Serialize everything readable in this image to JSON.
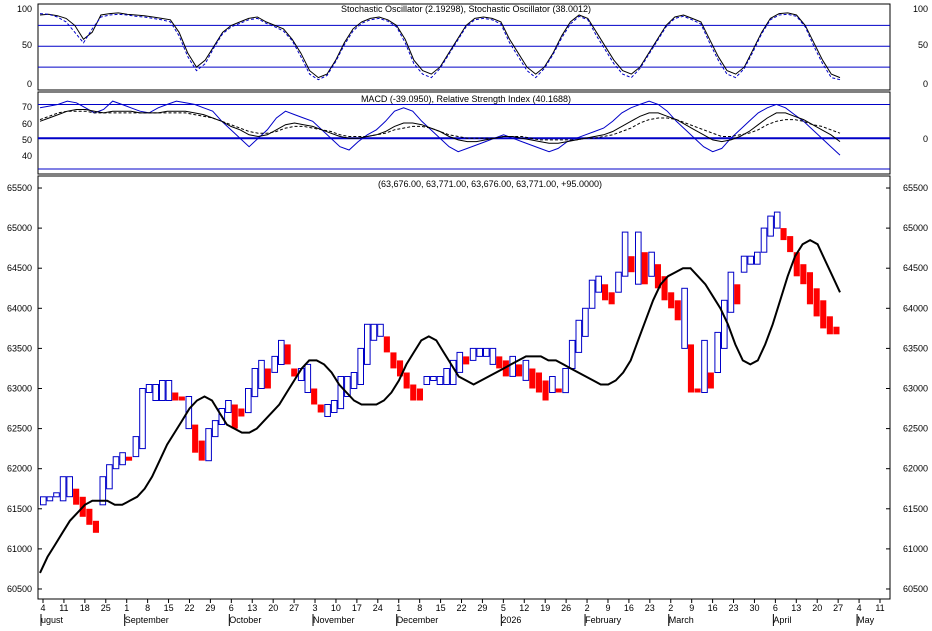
{
  "colors": {
    "background": "#ffffff",
    "frame": "#000000",
    "reference_line": "#0000c8",
    "up_bar": "#0000c8",
    "down_bar": "#ff0000",
    "indicator_line": "#000000",
    "indicator_blue": "#0000c8"
  },
  "stochastic_panel": {
    "title": "Stochastic Oscillator (2.19298), Stochastic Oscillator (38.0012)",
    "y_ticks": [
      "100",
      "50",
      "0"
    ],
    "right_ticks": [
      "100",
      "50",
      "0"
    ]
  },
  "macd_rsi_panel": {
    "title": "MACD (-39.0950), Relative Strength Index (40.1688)",
    "y_ticks": [
      "70",
      "60",
      "50",
      "40"
    ],
    "right_ticks": [
      "0"
    ]
  },
  "price_panel": {
    "title": "(63,676.00, 63,771.00, 63,676.00, 63,771.00, +95.0000)",
    "y_ticks": [
      "65500",
      "65000",
      "64500",
      "64000",
      "63500",
      "63000",
      "62500",
      "62000",
      "61500",
      "61000",
      "60500"
    ]
  },
  "x_axis": {
    "day_labels": [
      "4",
      "11",
      "18",
      "25",
      "1",
      "8",
      "15",
      "22",
      "29",
      "6",
      "13",
      "20",
      "27",
      "3",
      "10",
      "17",
      "24",
      "1",
      "8",
      "15",
      "22",
      "29",
      "5",
      "12",
      "19",
      "26",
      "2",
      "9",
      "16",
      "23",
      "2",
      "9",
      "16",
      "23",
      "30",
      "6",
      "13",
      "20",
      "27",
      "4",
      "11"
    ],
    "month_labels": [
      "ugust",
      "September",
      "October",
      "November",
      "December",
      "2026",
      "February",
      "March",
      "April",
      "May"
    ]
  },
  "chart_data": [
    {
      "type": "line",
      "name": "stochastic",
      "title": "Stochastic Oscillator (2.19298), Stochastic Oscillator (38.0012)",
      "ylim": [
        -10,
        105
      ],
      "reference_levels": [
        80,
        50,
        20
      ],
      "series": [
        {
          "values": [
            95,
            96,
            94,
            90,
            80,
            60,
            70,
            95,
            97,
            98,
            96,
            95,
            94,
            92,
            90,
            88,
            70,
            40,
            20,
            30,
            50,
            70,
            80,
            85,
            90,
            92,
            85,
            80,
            75,
            60,
            40,
            15,
            5,
            10,
            30,
            55,
            75,
            85,
            90,
            92,
            88,
            80,
            60,
            30,
            15,
            10,
            20,
            40,
            60,
            80,
            90,
            92,
            90,
            85,
            60,
            40,
            20,
            10,
            20,
            40,
            65,
            85,
            95,
            90,
            70,
            50,
            30,
            15,
            10,
            20,
            40,
            60,
            80,
            92,
            95,
            90,
            85,
            60,
            35,
            15,
            10,
            20,
            45,
            70,
            90,
            97,
            98,
            95,
            80,
            55,
            30,
            10,
            5
          ]
        },
        {
          "values": [
            97,
            96,
            92,
            85,
            70,
            55,
            75,
            92,
            95,
            96,
            95,
            93,
            92,
            90,
            88,
            85,
            65,
            35,
            15,
            25,
            48,
            68,
            78,
            83,
            88,
            90,
            83,
            78,
            72,
            58,
            35,
            10,
            2,
            8,
            28,
            52,
            72,
            83,
            88,
            90,
            86,
            78,
            55,
            25,
            10,
            5,
            18,
            38,
            58,
            78,
            88,
            90,
            88,
            82,
            55,
            35,
            15,
            5,
            18,
            38,
            62,
            82,
            93,
            88,
            65,
            45,
            25,
            10,
            5,
            18,
            38,
            58,
            78,
            90,
            93,
            88,
            82,
            55,
            30,
            10,
            5,
            18,
            42,
            68,
            88,
            95,
            96,
            93,
            78,
            50,
            25,
            5,
            2
          ]
        }
      ]
    },
    {
      "type": "line",
      "name": "macd-rsi",
      "title": "MACD (-39.0950), Relative Strength Index (40.1688)",
      "ylim": [
        30,
        75
      ],
      "reference_levels": [
        70,
        50
      ],
      "series": [
        {
          "values": [
            68,
            69,
            70,
            72,
            71,
            68,
            65,
            67,
            72,
            70,
            68,
            66,
            65,
            68,
            70,
            72,
            71,
            70,
            68,
            66,
            60,
            55,
            50,
            45,
            50,
            55,
            62,
            66,
            64,
            62,
            60,
            55,
            50,
            45,
            43,
            48,
            52,
            55,
            60,
            66,
            68,
            66,
            60,
            55,
            50,
            45,
            42,
            44,
            46,
            48,
            50,
            52,
            50,
            48,
            46,
            44,
            42,
            44,
            48,
            50,
            52,
            54,
            56,
            60,
            65,
            68,
            70,
            72,
            70,
            66,
            60,
            55,
            50,
            45,
            42,
            44,
            50,
            55,
            60,
            65,
            68,
            70,
            68,
            64,
            60,
            55,
            50,
            45,
            40
          ]
        },
        {
          "values": [
            60,
            62,
            64,
            66,
            67,
            67,
            66,
            65,
            66,
            66,
            66,
            65,
            65,
            65,
            66,
            66,
            66,
            65,
            64,
            62,
            60,
            57,
            55,
            52,
            51,
            52,
            55,
            58,
            59,
            58,
            57,
            55,
            53,
            51,
            50,
            50,
            51,
            52,
            54,
            57,
            59,
            59,
            58,
            56,
            54,
            51,
            49,
            48,
            48,
            49,
            50,
            51,
            51,
            50,
            49,
            48,
            47,
            47,
            48,
            49,
            50,
            51,
            52,
            54,
            57,
            60,
            63,
            65,
            65,
            63,
            61,
            58,
            55,
            52,
            49,
            48,
            49,
            51,
            54,
            58,
            62,
            65,
            65,
            63,
            61,
            58,
            55,
            52,
            48
          ]
        },
        {
          "values": [
            61,
            63,
            65,
            66,
            66,
            66,
            65,
            65,
            65,
            65,
            65,
            65,
            65,
            65,
            65,
            65,
            65,
            64,
            63,
            62,
            60,
            58,
            56,
            54,
            53,
            53,
            54,
            56,
            57,
            57,
            56,
            55,
            54,
            52,
            51,
            51,
            51,
            52,
            53,
            55,
            56,
            57,
            57,
            56,
            54,
            52,
            51,
            50,
            50,
            50,
            50,
            51,
            51,
            51,
            50,
            49,
            49,
            49,
            49,
            49,
            50,
            50,
            51,
            52,
            54,
            56,
            59,
            61,
            62,
            62,
            61,
            59,
            57,
            55,
            53,
            51,
            51,
            52,
            53,
            55,
            58,
            60,
            61,
            61,
            60,
            58,
            57,
            55,
            53
          ]
        }
      ]
    },
    {
      "type": "bar",
      "name": "price",
      "title": "(63,676.00, 63,771.00, 63,676.00, 63,771.00, +95.0000)",
      "ylim": [
        60400,
        65600
      ],
      "bars": [
        [
          61550,
          61650
        ],
        [
          61600,
          61650
        ],
        [
          61650,
          61700
        ],
        [
          61600,
          61900
        ],
        [
          61650,
          61900
        ],
        [
          61550,
          61750
        ],
        [
          61400,
          61650
        ],
        [
          61300,
          61500
        ],
        [
          61200,
          61350
        ],
        [
          61550,
          61900
        ],
        [
          61750,
          62050
        ],
        [
          62000,
          62150
        ],
        [
          62050,
          62200
        ],
        [
          62100,
          62150
        ],
        [
          62150,
          62400
        ],
        [
          62250,
          63000
        ],
        [
          62950,
          63050
        ],
        [
          62850,
          63050
        ],
        [
          62850,
          63100
        ],
        [
          62850,
          63100
        ],
        [
          62850,
          62950
        ],
        [
          62850,
          62900
        ],
        [
          62500,
          62900
        ],
        [
          62200,
          62550
        ],
        [
          62100,
          62350
        ],
        [
          62100,
          62500
        ],
        [
          62400,
          62600
        ],
        [
          62550,
          62750
        ],
        [
          62700,
          62850
        ],
        [
          62500,
          62800
        ],
        [
          62650,
          62750
        ],
        [
          62700,
          63000
        ],
        [
          62900,
          63250
        ],
        [
          63000,
          63350
        ],
        [
          63000,
          63250
        ],
        [
          63200,
          63400
        ],
        [
          63300,
          63600
        ],
        [
          63300,
          63550
        ],
        [
          63150,
          63250
        ],
        [
          63100,
          63250
        ],
        [
          62950,
          63300
        ],
        [
          62800,
          63000
        ],
        [
          62700,
          62800
        ],
        [
          62650,
          62800
        ],
        [
          62700,
          62850
        ],
        [
          62750,
          63150
        ],
        [
          62900,
          63150
        ],
        [
          63000,
          63200
        ],
        [
          63050,
          63500
        ],
        [
          63300,
          63800
        ],
        [
          63600,
          63800
        ],
        [
          63650,
          63800
        ],
        [
          63450,
          63650
        ],
        [
          63250,
          63450
        ],
        [
          63150,
          63350
        ],
        [
          63000,
          63200
        ],
        [
          62850,
          63050
        ],
        [
          62850,
          63000
        ],
        [
          63050,
          63150
        ],
        [
          63100,
          63150
        ],
        [
          63050,
          63150
        ],
        [
          63050,
          63250
        ],
        [
          63050,
          63350
        ],
        [
          63200,
          63450
        ],
        [
          63300,
          63400
        ],
        [
          63350,
          63500
        ],
        [
          63400,
          63500
        ],
        [
          63400,
          63500
        ],
        [
          63300,
          63500
        ],
        [
          63250,
          63400
        ],
        [
          63150,
          63350
        ],
        [
          63150,
          63400
        ],
        [
          63150,
          63300
        ],
        [
          63100,
          63350
        ],
        [
          63000,
          63250
        ],
        [
          62950,
          63200
        ],
        [
          62850,
          63100
        ],
        [
          62950,
          63150
        ],
        [
          62950,
          63000
        ],
        [
          62950,
          63250
        ],
        [
          63250,
          63600
        ],
        [
          63450,
          63850
        ],
        [
          63650,
          64000
        ],
        [
          64000,
          64350
        ],
        [
          64200,
          64400
        ],
        [
          64100,
          64300
        ],
        [
          64050,
          64200
        ],
        [
          64200,
          64450
        ],
        [
          64400,
          64950
        ],
        [
          64450,
          64650
        ],
        [
          64300,
          64950
        ],
        [
          64300,
          64700
        ],
        [
          64400,
          64700
        ],
        [
          64250,
          64550
        ],
        [
          64100,
          64400
        ],
        [
          64000,
          64200
        ],
        [
          63850,
          64100
        ],
        [
          63500,
          64250
        ],
        [
          62950,
          63550
        ],
        [
          62950,
          63000
        ],
        [
          62950,
          63600
        ],
        [
          63000,
          63200
        ],
        [
          63200,
          63700
        ],
        [
          63500,
          64100
        ],
        [
          63950,
          64450
        ],
        [
          64050,
          64300
        ],
        [
          64450,
          64650
        ],
        [
          64550,
          64650
        ],
        [
          64550,
          64700
        ],
        [
          64700,
          65000
        ],
        [
          64900,
          65150
        ],
        [
          65000,
          65200
        ],
        [
          64850,
          65000
        ],
        [
          64700,
          64900
        ],
        [
          64400,
          64700
        ],
        [
          64300,
          64550
        ],
        [
          64050,
          64450
        ],
        [
          63900,
          64250
        ],
        [
          63750,
          64100
        ],
        [
          63676,
          63900
        ],
        [
          63676,
          63771
        ]
      ],
      "moving_average": [
        60700,
        60900,
        61050,
        61200,
        61350,
        61450,
        61550,
        61600,
        61600,
        61600,
        61550,
        61550,
        61600,
        61650,
        61750,
        61900,
        62100,
        62300,
        62450,
        62600,
        62750,
        62850,
        62900,
        62850,
        62700,
        62550,
        62500,
        62450,
        62450,
        62500,
        62600,
        62700,
        62800,
        62950,
        63100,
        63250,
        63350,
        63350,
        63300,
        63200,
        63050,
        62950,
        62850,
        62800,
        62800,
        62800,
        62850,
        62950,
        63100,
        63300,
        63450,
        63600,
        63650,
        63600,
        63450,
        63300,
        63150,
        63100,
        63050,
        63100,
        63150,
        63200,
        63250,
        63300,
        63350,
        63400,
        63400,
        63400,
        63350,
        63350,
        63300,
        63250,
        63200,
        63150,
        63100,
        63050,
        63050,
        63100,
        63200,
        63350,
        63600,
        63850,
        64100,
        64300,
        64400,
        64450,
        64500,
        64500,
        64400,
        64300,
        64150,
        64000,
        63800,
        63550,
        63350,
        63300,
        63350,
        63550,
        63800,
        64100,
        64400,
        64650,
        64800,
        64850,
        64800,
        64600,
        64400,
        64200
      ]
    }
  ]
}
